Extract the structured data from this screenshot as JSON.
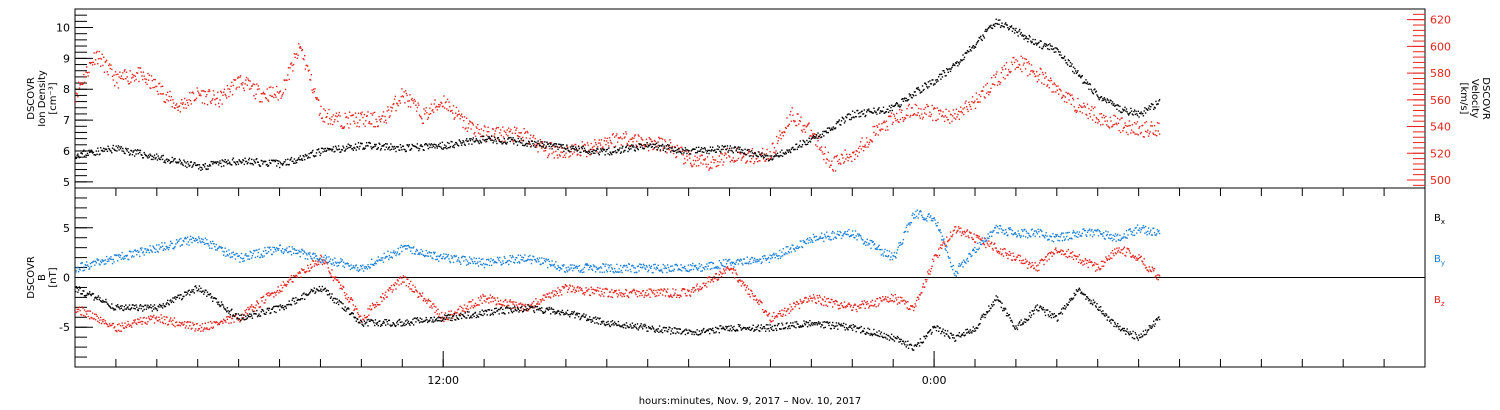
{
  "figure": {
    "xlabel": "hours:minutes, Nov.  9, 2017 – Nov. 10, 2017",
    "xticks": [
      {
        "x": 12,
        "label": "12:00"
      },
      {
        "x": 24,
        "label": "0:00"
      }
    ],
    "colors": {
      "black": "#000000",
      "red": "#e8221c",
      "blue": "#1a7fd8"
    }
  },
  "chart_data": [
    {
      "type": "scatter",
      "panel": "top",
      "ylabel_left": [
        "DSCOVR",
        "Ion Density",
        "[cm⁻³]"
      ],
      "ylabel_right": [
        "DSCOVR",
        "Velocity",
        "[km/s]"
      ],
      "xlim": [
        3,
        36
      ],
      "ylim_left": [
        4.8,
        10.6
      ],
      "ylim_right": [
        494,
        628
      ],
      "left_ticks": [
        5,
        6,
        7,
        8,
        9,
        10
      ],
      "right_ticks": [
        500,
        520,
        540,
        560,
        580,
        600,
        620
      ],
      "series": [
        {
          "axis": "left",
          "color": "#000000",
          "x": [
            3,
            4,
            5,
            6,
            7,
            8,
            9,
            10,
            11,
            12,
            13,
            14,
            15,
            16,
            17,
            18,
            19,
            20,
            21,
            22,
            23,
            23.5,
            24,
            24.5,
            25,
            25.5,
            26,
            26.5,
            27,
            27.5,
            28,
            28.5,
            29,
            29.5
          ],
          "y": [
            5.9,
            6.1,
            5.8,
            5.5,
            5.7,
            5.6,
            6.0,
            6.2,
            6.1,
            6.2,
            6.4,
            6.3,
            6.1,
            6.0,
            6.2,
            6.0,
            6.1,
            5.8,
            6.4,
            7.2,
            7.4,
            7.9,
            8.3,
            8.8,
            9.5,
            10.2,
            9.9,
            9.5,
            9.3,
            8.5,
            7.8,
            7.4,
            7.2,
            7.6
          ]
        },
        {
          "axis": "right",
          "color": "#e8221c",
          "x": [
            3,
            3.5,
            4,
            4.5,
            5,
            5.5,
            6,
            6.5,
            7,
            7.5,
            8,
            8.5,
            9,
            9.5,
            10,
            10.5,
            11,
            11.5,
            12,
            12.5,
            13,
            13.5,
            14,
            14.5,
            15,
            15.5,
            16,
            16.5,
            17,
            17.5,
            18,
            18.5,
            19,
            19.5,
            20,
            20.5,
            21,
            21.5,
            22,
            22.5,
            23,
            23.5,
            24,
            24.5,
            25,
            25.5,
            26,
            26.5,
            27,
            27.5,
            28,
            28.5,
            29,
            29.5
          ],
          "y": [
            565,
            595,
            575,
            580,
            570,
            555,
            565,
            560,
            575,
            565,
            565,
            600,
            550,
            545,
            546,
            545,
            565,
            548,
            560,
            543,
            535,
            535,
            533,
            523,
            522,
            524,
            530,
            532,
            528,
            526,
            515,
            512,
            520,
            518,
            520,
            550,
            535,
            512,
            520,
            535,
            546,
            553,
            550,
            548,
            560,
            575,
            590,
            580,
            568,
            556,
            548,
            542,
            538,
            540
          ]
        }
      ]
    },
    {
      "type": "scatter",
      "panel": "bottom",
      "ylabel": [
        "DSCOVR",
        "B",
        "[nT]"
      ],
      "xlim": [
        3,
        36
      ],
      "ylim": [
        -9,
        9
      ],
      "yticks": [
        -5,
        0,
        5
      ],
      "legend": [
        "Bx",
        "By",
        "Bz"
      ],
      "legend_placement": "right",
      "zero_line": true,
      "series": [
        {
          "name": "Bx",
          "color": "#000000",
          "x": [
            3,
            4,
            5,
            6,
            7,
            8,
            9,
            10,
            11,
            12,
            13,
            14,
            15,
            16,
            17,
            18,
            19,
            20,
            21,
            22,
            23,
            23.5,
            24,
            24.5,
            25,
            25.5,
            26,
            26.5,
            27,
            27.5,
            28,
            28.5,
            29,
            29.5
          ],
          "y": [
            -1,
            -3,
            -3,
            -1,
            -4,
            -3,
            -1,
            -4.5,
            -4.5,
            -4,
            -3.5,
            -3,
            -3.5,
            -4.5,
            -5,
            -5.5,
            -5,
            -5,
            -4.5,
            -5,
            -6,
            -7,
            -5,
            -6,
            -5,
            -2,
            -5,
            -3,
            -4,
            -1,
            -3,
            -5,
            -6,
            -4
          ]
        },
        {
          "name": "By",
          "color": "#1a7fd8",
          "x": [
            3,
            4,
            5,
            6,
            7,
            8,
            9,
            10,
            11,
            12,
            13,
            14,
            15,
            16,
            17,
            18,
            19,
            20,
            21,
            22,
            23,
            23.5,
            24,
            24.5,
            25,
            25.5,
            26,
            26.5,
            27,
            27.5,
            28,
            28.5,
            29,
            29.5
          ],
          "y": [
            1,
            2,
            3,
            4,
            2,
            3,
            2,
            1,
            3,
            2,
            1.5,
            2,
            1,
            1,
            1,
            1,
            1.5,
            2,
            4,
            4.5,
            2,
            6.5,
            6,
            0.5,
            3,
            5,
            4.5,
            4.5,
            4,
            4.5,
            4.5,
            4,
            5,
            4.5
          ]
        },
        {
          "name": "Bz",
          "color": "#e8221c",
          "x": [
            3,
            4,
            5,
            6,
            7,
            8,
            9,
            10,
            11,
            12,
            13,
            14,
            15,
            16,
            17,
            18,
            19,
            20,
            21,
            22,
            23,
            23.5,
            24,
            24.5,
            25,
            25.5,
            26,
            26.5,
            27,
            27.5,
            28,
            28.5,
            29,
            29.5
          ],
          "y": [
            -3,
            -5,
            -4,
            -5,
            -4,
            -1,
            2,
            -4,
            0,
            -4,
            -2,
            -3,
            -1,
            -1.5,
            -1.5,
            -1.5,
            1,
            -4,
            -2,
            -3,
            -2,
            -3,
            2,
            5,
            4,
            3,
            2,
            1,
            3,
            2,
            1,
            3,
            2,
            0
          ]
        }
      ]
    }
  ]
}
